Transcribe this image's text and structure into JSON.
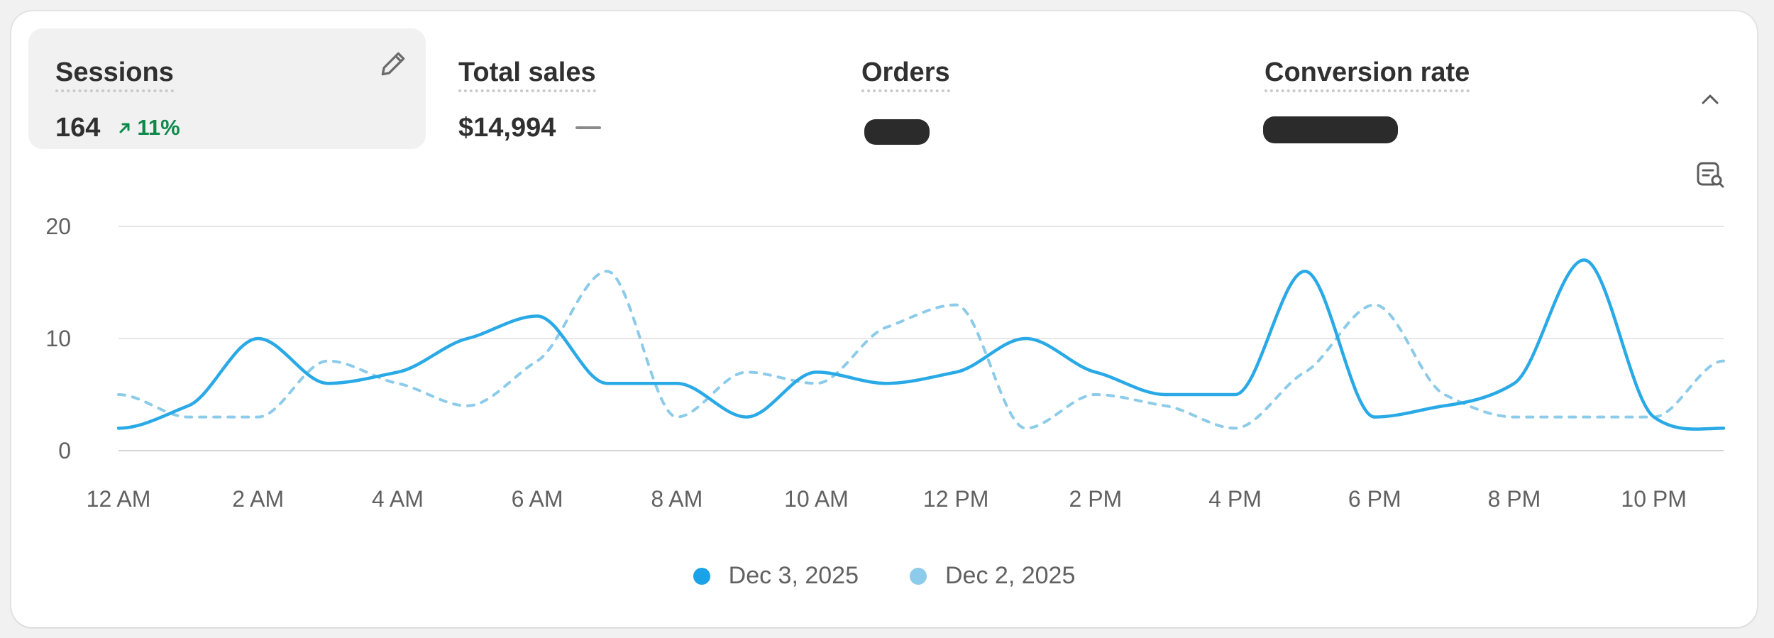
{
  "metrics": [
    {
      "label": "Sessions",
      "value": "164",
      "change": "11%",
      "active": true
    },
    {
      "label": "Total sales",
      "value": "$14,994",
      "change": ""
    },
    {
      "label": "Orders",
      "value": ""
    },
    {
      "label": "Conversion rate",
      "value": ""
    }
  ],
  "icons": {
    "edit": "pencil-icon",
    "trend_up": "arrow-up-right-icon",
    "collapse": "chevron-up-icon",
    "insights": "report-search-icon"
  },
  "colors": {
    "current": "#29a9e6",
    "previous": "#8ccbe9",
    "positive": "#0c8a4a"
  },
  "chart_data": {
    "type": "line",
    "x": [
      "12 AM",
      "1 AM",
      "2 AM",
      "3 AM",
      "4 AM",
      "5 AM",
      "6 AM",
      "7 AM",
      "8 AM",
      "9 AM",
      "10 AM",
      "11 AM",
      "12 PM",
      "1 PM",
      "2 PM",
      "3 PM",
      "4 PM",
      "5 PM",
      "6 PM",
      "7 PM",
      "8 PM",
      "9 PM",
      "10 PM",
      "11 PM"
    ],
    "tick_labels": [
      "12 AM",
      "2 AM",
      "4 AM",
      "6 AM",
      "8 AM",
      "10 AM",
      "12 PM",
      "2 PM",
      "4 PM",
      "6 PM",
      "8 PM",
      "10 PM"
    ],
    "y_ticks": [
      "20",
      "10",
      "0"
    ],
    "ylim": [
      0,
      20
    ],
    "grid": true,
    "legend_position": "bottom-center",
    "series": [
      {
        "name": "Dec 3, 2025",
        "style": "solid",
        "values": [
          2,
          4,
          10,
          6,
          7,
          10,
          12,
          6,
          6,
          3,
          7,
          6,
          7,
          10,
          7,
          5,
          5,
          16,
          3,
          4,
          6,
          17,
          3,
          2
        ]
      },
      {
        "name": "Dec 2, 2025",
        "style": "dashed",
        "values": [
          5,
          3,
          3,
          8,
          6,
          4,
          8,
          16,
          3,
          7,
          6,
          11,
          13,
          2,
          5,
          4,
          2,
          7,
          13,
          5,
          3,
          3,
          3,
          8
        ]
      }
    ]
  }
}
